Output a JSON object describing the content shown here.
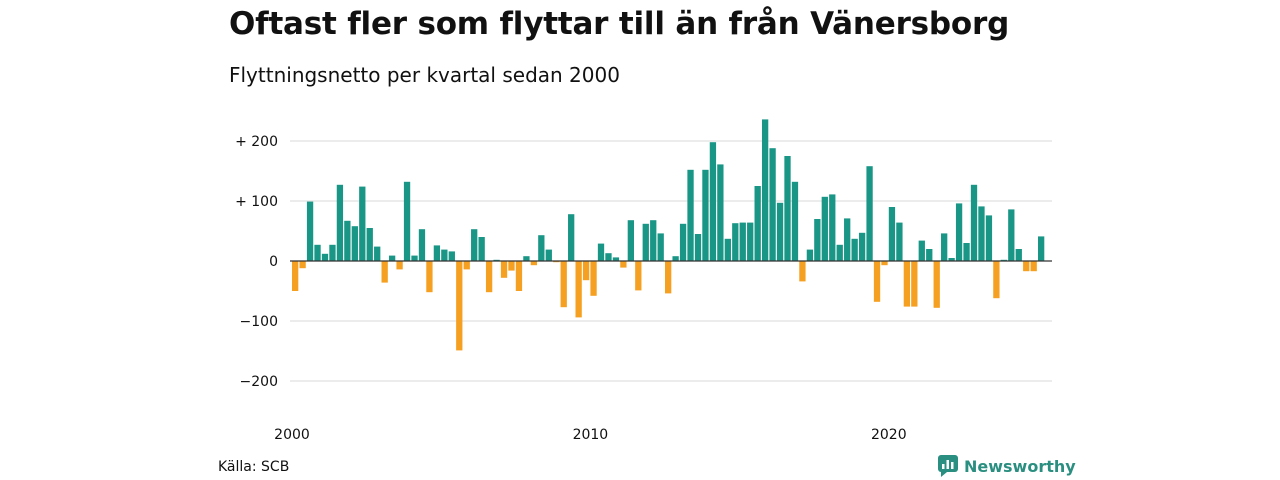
{
  "title": "Oftast fler som flyttar till än från Vänersborg",
  "subtitle": "Flyttningsnetto per kvartal sedan 2000",
  "source": "Källa: SCB",
  "brand": {
    "name": "Newsworthy",
    "icon": "newsworthy-logo-icon"
  },
  "colors": {
    "positive": "#1a9687",
    "negative": "#f5a021",
    "grid": "#d9d9d9",
    "brand": "#2a8f80"
  },
  "chart_data": {
    "type": "bar",
    "ylim": [
      -240,
      240
    ],
    "yticks": [
      {
        "value": 200,
        "label": "+ 200"
      },
      {
        "value": 100,
        "label": "+ 100"
      },
      {
        "value": 0,
        "label": "0"
      },
      {
        "value": -100,
        "label": "−100"
      },
      {
        "value": -200,
        "label": "−200"
      }
    ],
    "xticks": [
      {
        "value": 2000,
        "label": "2000"
      },
      {
        "value": 2010,
        "label": "2010"
      },
      {
        "value": 2020,
        "label": "2020"
      }
    ],
    "grid": true,
    "x_start": 2000.0,
    "x_step": 0.25,
    "values": [
      -50,
      -12,
      99,
      27,
      12,
      27,
      127,
      67,
      58,
      124,
      55,
      24,
      -36,
      9,
      -14,
      132,
      9,
      53,
      -52,
      26,
      19,
      16,
      -149,
      -14,
      53,
      40,
      -52,
      2,
      -28,
      -16,
      -50,
      8,
      -7,
      43,
      19,
      -2,
      -77,
      78,
      -94,
      -32,
      -58,
      29,
      13,
      6,
      -11,
      68,
      -49,
      62,
      68,
      46,
      -54,
      8,
      62,
      152,
      45,
      152,
      198,
      161,
      37,
      63,
      64,
      64,
      125,
      236,
      188,
      97,
      175,
      132,
      -34,
      19,
      70,
      107,
      111,
      27,
      71,
      37,
      47,
      158,
      -68,
      -7,
      90,
      64,
      -76,
      -76,
      34,
      20,
      -78,
      46,
      5,
      96,
      30,
      127,
      91,
      76,
      -62,
      2,
      86,
      20,
      -17,
      -17,
      41
    ]
  }
}
